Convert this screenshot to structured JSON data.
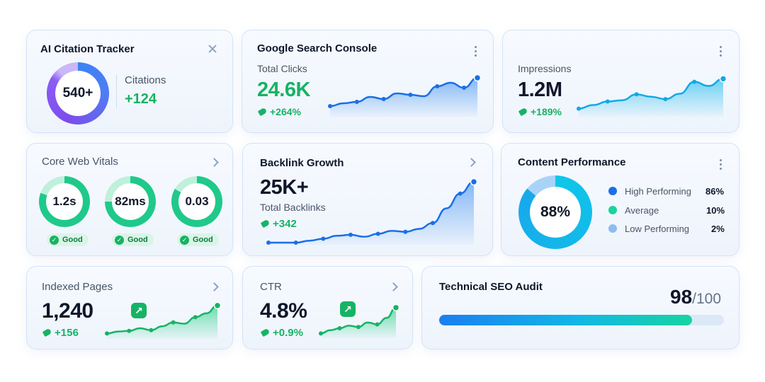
{
  "ai_citation": {
    "title": "AI Citation Tracker",
    "ring_value": "540+",
    "label": "Citations",
    "delta": "+124",
    "close_icon": "close-icon"
  },
  "gsc": {
    "title": "Google Search Console",
    "label": "Total Clicks",
    "value": "24.6K",
    "delta": "+264%",
    "chart": [
      12,
      16,
      18,
      25,
      22,
      30,
      28,
      26,
      40,
      45,
      38,
      52
    ]
  },
  "impressions": {
    "label": "Impressions",
    "value": "1.2M",
    "delta": "+189%",
    "chart": [
      10,
      16,
      22,
      24,
      34,
      30,
      26,
      35,
      55,
      48,
      60
    ]
  },
  "cwv": {
    "title": "Core Web Vitals",
    "metrics": [
      {
        "value": "1.2s",
        "status": "Good"
      },
      {
        "value": "82ms",
        "status": "Good"
      },
      {
        "value": "0.03",
        "status": "Good"
      }
    ]
  },
  "backlink": {
    "title": "Backlink Growth",
    "value": "25K+",
    "label": "Total Backlinks",
    "delta": "+342",
    "chart": [
      10,
      10,
      10,
      12,
      14,
      17,
      18,
      16,
      19,
      22,
      21,
      24,
      30,
      45,
      60,
      72
    ]
  },
  "content": {
    "title": "Content Performance",
    "ring_value": "88%",
    "items": [
      {
        "label": "High Performing",
        "value": "86%",
        "color": "#1a6fe8"
      },
      {
        "label": "Average",
        "value": "10%",
        "color": "#17d4a0"
      },
      {
        "label": "Low Performing",
        "value": "2%",
        "color": "#8dbdf0"
      }
    ]
  },
  "indexed": {
    "title": "Indexed Pages",
    "value": "1,240",
    "delta": "+156",
    "chart": [
      5,
      8,
      9,
      13,
      10,
      16,
      22,
      20,
      30,
      36,
      48
    ]
  },
  "ctr": {
    "title": "CTR",
    "value": "4.8%",
    "delta": "+0.9%",
    "chart": [
      4,
      9,
      12,
      16,
      14,
      21,
      18,
      28,
      44
    ]
  },
  "audit": {
    "title": "Technical SEO Audit",
    "score": "98",
    "max": "/100",
    "progress": 0.98
  },
  "colors": {
    "blue": "#1a6fe8",
    "green": "#16b364",
    "teal": "#17d4a0",
    "purple": "#8b5cf6"
  }
}
